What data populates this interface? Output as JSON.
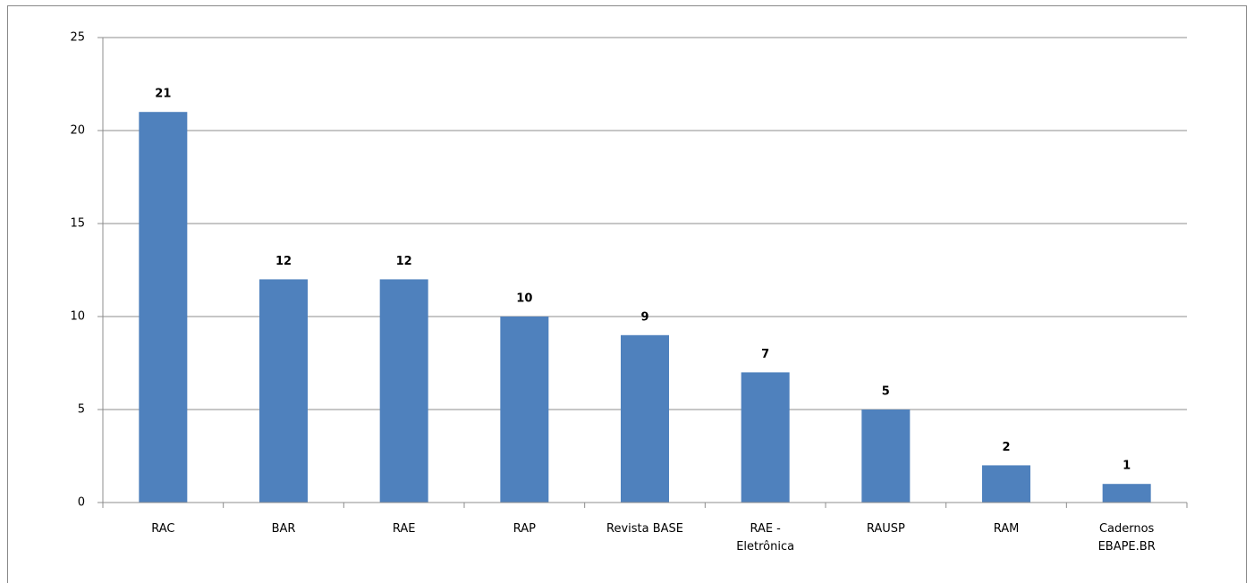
{
  "chart_data": {
    "type": "bar",
    "categories": [
      "RAC",
      "BAR",
      "RAE",
      "RAP",
      "Revista BASE",
      "RAE - Eletrônica",
      "RAUSP",
      "RAM",
      "Cadernos EBAPE.BR"
    ],
    "values": [
      21,
      12,
      12,
      10,
      9,
      7,
      5,
      2,
      1
    ],
    "color": "#4f81bd",
    "ylim": [
      0,
      25
    ],
    "yticks": [
      0,
      5,
      10,
      15,
      20,
      25
    ],
    "grid": true
  }
}
